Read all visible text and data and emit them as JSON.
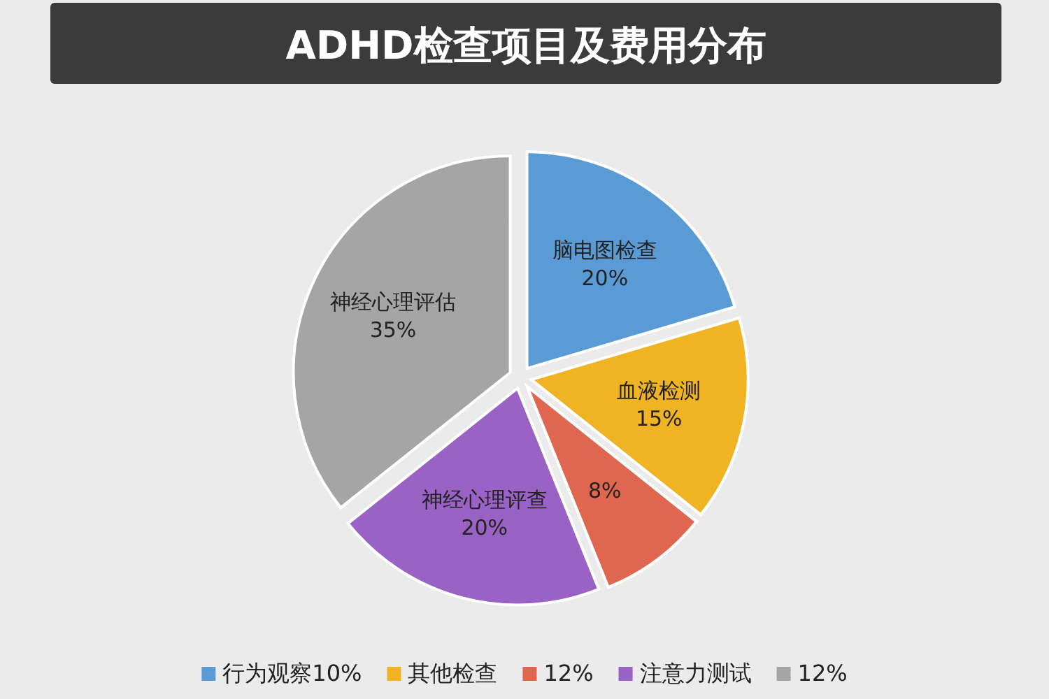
{
  "chart_data": {
    "type": "pie",
    "title": "ADHD检查项目及费用分布",
    "categories": [
      "行为观察10%",
      "其他检查",
      "12%",
      "注意力测试",
      "12%"
    ],
    "values": [
      20,
      15,
      8,
      20,
      35
    ],
    "colors": [
      "#5b9bd5",
      "#f0b323",
      "#e0674f",
      "#9a62c4",
      "#a5a5a5"
    ],
    "value_labels": [
      "脑电图检查\n20%",
      "血液检测\n15%",
      "8%",
      "神经心理评查\n20%",
      "神经心理评估\n35%"
    ],
    "legend": "bottom"
  }
}
